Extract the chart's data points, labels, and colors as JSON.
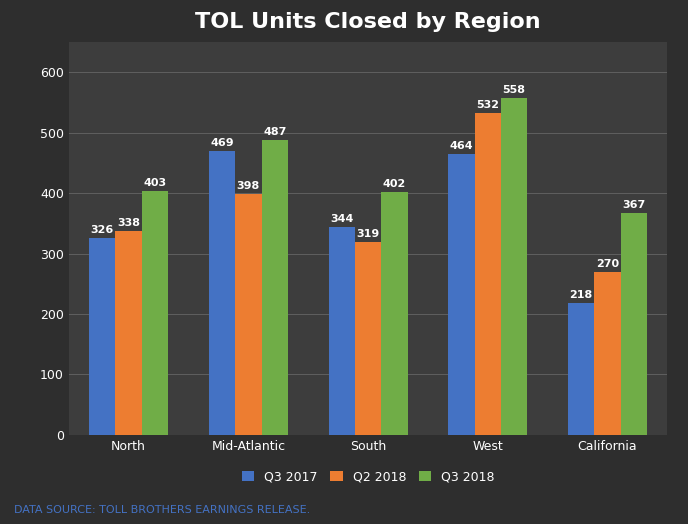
{
  "title": "TOL Units Closed by Region",
  "categories": [
    "North",
    "Mid-Atlantic",
    "South",
    "West",
    "California"
  ],
  "series": {
    "Q3 2017": [
      326,
      469,
      344,
      464,
      218
    ],
    "Q2 2018": [
      338,
      398,
      319,
      532,
      270
    ],
    "Q3 2018": [
      403,
      487,
      402,
      558,
      367
    ]
  },
  "series_order": [
    "Q3 2017",
    "Q2 2018",
    "Q3 2018"
  ],
  "colors": {
    "Q3 2017": "#4472C4",
    "Q2 2018": "#ED7D31",
    "Q3 2018": "#70AD47"
  },
  "ylim": [
    0,
    650
  ],
  "yticks": [
    0,
    100,
    200,
    300,
    400,
    500,
    600
  ],
  "background_color": "#2E2E2E",
  "plot_bg_color": "#3D3D3D",
  "footnote_bg_color": "#F0F0F0",
  "grid_color": "#606060",
  "text_color": "#FFFFFF",
  "title_fontsize": 16,
  "label_fontsize": 8,
  "tick_fontsize": 9,
  "legend_fontsize": 9,
  "bar_width": 0.22,
  "footnote": "DATA SOURCE: TOLL BROTHERS EARNINGS RELEASE.",
  "footnote_color": "#4472C4",
  "footnote_fontsize": 8
}
